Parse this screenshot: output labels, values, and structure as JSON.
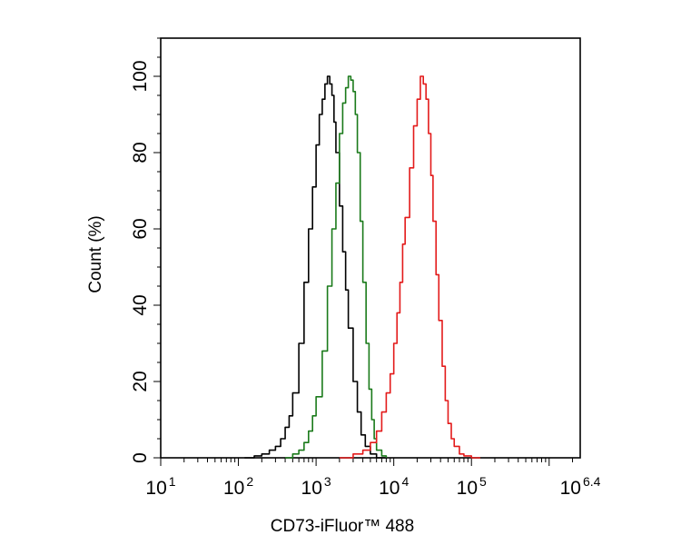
{
  "chart_data": {
    "type": "line",
    "xlabel": "CD73-iFluor™ 488",
    "ylabel": "Count  (%)",
    "x_scale": "log10",
    "xlim": [
      10,
      2511886
    ],
    "ylim": [
      0,
      110
    ],
    "x_ticks": [
      {
        "base": "10",
        "exp": "1",
        "value": 10
      },
      {
        "base": "10",
        "exp": "2",
        "value": 100
      },
      {
        "base": "10",
        "exp": "3",
        "value": 1000
      },
      {
        "base": "10",
        "exp": "4",
        "value": 10000
      },
      {
        "base": "10",
        "exp": "5",
        "value": 100000
      },
      {
        "base": "10",
        "exp": "6.4",
        "value": 2511886
      }
    ],
    "y_ticks": [
      "0",
      "20",
      "40",
      "60",
      "80",
      "100"
    ],
    "grid": false,
    "series": [
      {
        "color": "#000000",
        "x": [
          120,
          160,
          200,
          250,
          300,
          350,
          400,
          450,
          500,
          600,
          700,
          800,
          900,
          1000,
          1100,
          1200,
          1300,
          1400,
          1500,
          1600,
          1700,
          1800,
          2000,
          2200,
          2400,
          2600,
          3000,
          3400,
          3800,
          4300,
          5000,
          6000,
          8000
        ],
        "y": [
          0,
          0.5,
          1,
          2,
          3,
          5,
          8,
          11,
          17,
          30,
          46,
          60,
          71,
          82,
          90,
          94,
          98,
          100,
          98,
          95,
          88,
          80,
          66,
          54,
          44,
          34,
          20,
          12,
          6,
          3,
          1,
          0,
          0
        ]
      },
      {
        "color": "#1a7a1a",
        "x": [
          400,
          500,
          600,
          700,
          800,
          900,
          1000,
          1200,
          1400,
          1600,
          1800,
          2000,
          2200,
          2400,
          2600,
          2800,
          3000,
          3200,
          3400,
          3700,
          4000,
          4400,
          4800,
          5200,
          5600,
          6000,
          7000,
          8000
        ],
        "y": [
          0,
          1,
          2,
          4,
          7,
          11,
          16,
          28,
          45,
          60,
          72,
          85,
          93,
          97,
          100,
          99,
          96,
          90,
          80,
          62,
          46,
          30,
          18,
          10,
          5,
          2,
          0.5,
          0
        ]
      },
      {
        "color": "#e31a1a",
        "x": [
          2000,
          3000,
          4000,
          5000,
          6000,
          7000,
          8000,
          9000,
          10000,
          11000,
          12000,
          13000,
          14000,
          16000,
          18000,
          20000,
          22000,
          24000,
          26000,
          28000,
          30000,
          32000,
          35000,
          38000,
          42000,
          46000,
          50000,
          55000,
          60000,
          70000,
          80000,
          100000,
          130000
        ],
        "y": [
          0,
          1,
          2,
          4,
          7,
          12,
          17,
          22,
          30,
          38,
          46,
          56,
          63,
          76,
          87,
          94,
          100,
          98,
          94,
          85,
          74,
          62,
          48,
          36,
          24,
          15,
          9,
          5,
          3,
          1,
          0.5,
          0,
          0
        ]
      }
    ]
  }
}
